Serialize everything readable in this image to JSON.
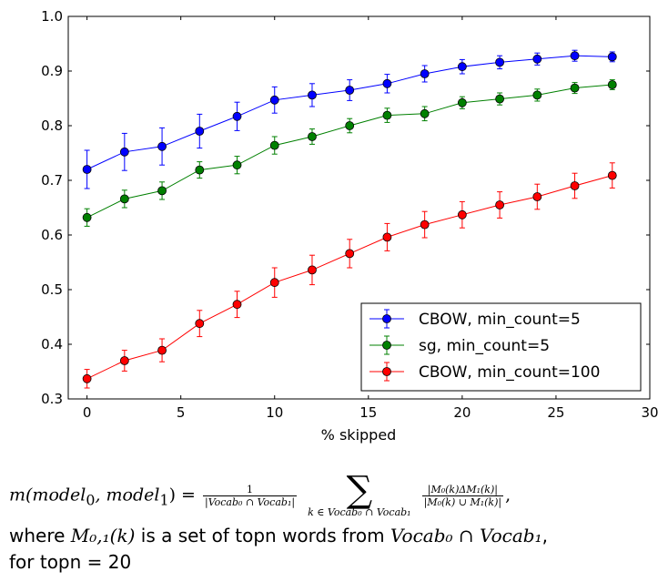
{
  "chart_data": {
    "type": "line",
    "xlabel": "% skipped",
    "ylabel": "",
    "xlim": [
      -1,
      30
    ],
    "ylim": [
      0.3,
      1.0
    ],
    "xticks": [
      "0",
      "5",
      "10",
      "15",
      "20",
      "25",
      "30"
    ],
    "yticks": [
      "0.3",
      "0.4",
      "0.5",
      "0.6",
      "0.7",
      "0.8",
      "0.9",
      "1.0"
    ],
    "legend_position": "lower-right",
    "x": [
      0,
      2,
      4,
      6,
      8,
      10,
      12,
      14,
      16,
      18,
      20,
      22,
      24,
      26,
      28
    ],
    "series": [
      {
        "name": "CBOW, min_count=5",
        "color": "#0000ff",
        "values": [
          0.72,
          0.752,
          0.762,
          0.79,
          0.817,
          0.847,
          0.856,
          0.865,
          0.877,
          0.895,
          0.908,
          0.916,
          0.922,
          0.928,
          0.926
        ],
        "errors": [
          0.035,
          0.034,
          0.034,
          0.031,
          0.026,
          0.024,
          0.021,
          0.019,
          0.017,
          0.015,
          0.013,
          0.012,
          0.011,
          0.01,
          0.009
        ]
      },
      {
        "name": "sg, min_count=5",
        "color": "#008000",
        "values": [
          0.632,
          0.666,
          0.681,
          0.719,
          0.728,
          0.764,
          0.78,
          0.8,
          0.819,
          0.822,
          0.842,
          0.849,
          0.856,
          0.869,
          0.875
        ],
        "errors": [
          0.016,
          0.016,
          0.016,
          0.015,
          0.016,
          0.016,
          0.014,
          0.013,
          0.013,
          0.013,
          0.011,
          0.011,
          0.011,
          0.01,
          0.009
        ]
      },
      {
        "name": "CBOW, min_count=100",
        "color": "#ff0000",
        "values": [
          0.337,
          0.37,
          0.389,
          0.438,
          0.473,
          0.513,
          0.536,
          0.566,
          0.596,
          0.619,
          0.637,
          0.655,
          0.67,
          0.69,
          0.709
        ],
        "errors": [
          0.017,
          0.019,
          0.021,
          0.024,
          0.024,
          0.027,
          0.027,
          0.026,
          0.025,
          0.024,
          0.024,
          0.024,
          0.023,
          0.023,
          0.023
        ]
      }
    ]
  },
  "formula": {
    "lhs": "m(model",
    "sub0": "0",
    "comma": ", model",
    "sub1": "1",
    "close": ") = ",
    "frac_num": "1",
    "frac_den": "|Vocab₀ ∩ Vocab₁|",
    "sigma": "∑",
    "sigma_sub": "k ∈ Vocab₀ ∩ Vocab₁",
    "term_num": "|M₀(k)ΔM₁(k)|",
    "term_den": "|M₀(k) ∪ M₁(k)|",
    "tail": ","
  },
  "caption": {
    "line1_prefix": "where ",
    "line1_math1": "M₀,₁(k)",
    "line1_mid": " is a set of topn words from ",
    "line1_math2": "Vocab₀ ∩ Vocab₁",
    "line1_suffix": ",",
    "line2": "for topn = 20"
  }
}
